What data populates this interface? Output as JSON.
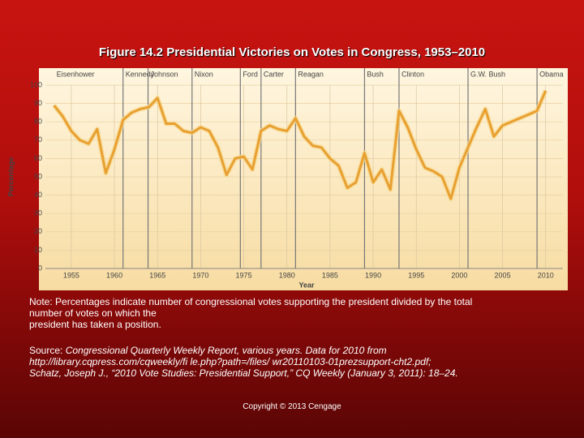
{
  "chart_data": {
    "type": "line",
    "title": "Figure 14.2 Presidential Victories on Votes in Congress, 1953–2010",
    "x_label": "Year",
    "y_label": "Percentage",
    "x": [
      1953,
      1954,
      1955,
      1956,
      1957,
      1958,
      1959,
      1960,
      1961,
      1962,
      1963,
      1964,
      1965,
      1966,
      1967,
      1968,
      1969,
      1970,
      1971,
      1972,
      1973,
      1974,
      1975,
      1976,
      1977,
      1978,
      1979,
      1980,
      1981,
      1982,
      1983,
      1984,
      1985,
      1986,
      1987,
      1988,
      1989,
      1990,
      1991,
      1992,
      1993,
      1994,
      1995,
      1996,
      1997,
      1998,
      1999,
      2000,
      2001,
      2002,
      2003,
      2004,
      2005,
      2006,
      2007,
      2008,
      2009,
      2010
    ],
    "series": [
      {
        "color": "#e8a030",
        "values": [
          89,
          83,
          75,
          70,
          68,
          76,
          52,
          65,
          81,
          85,
          87,
          88,
          93,
          79,
          79,
          75,
          74,
          77,
          75,
          66,
          51,
          60,
          61,
          54,
          75,
          78,
          76,
          75,
          82,
          72,
          67,
          66,
          60,
          56,
          44,
          47,
          63,
          47,
          54,
          43,
          86,
          77,
          65,
          55,
          53,
          50,
          38,
          55,
          66,
          77,
          87,
          72,
          78,
          80,
          82,
          84,
          86,
          97
        ]
      }
    ],
    "xlim": [
      1952,
      2012
    ],
    "ylim": [
      0,
      100
    ],
    "xticks": [
      1955,
      1960,
      1965,
      1970,
      1975,
      1980,
      1985,
      1990,
      1995,
      2000,
      2005,
      2010
    ],
    "yticks": [
      0,
      10,
      20,
      30,
      40,
      50,
      60,
      70,
      80,
      90,
      100
    ],
    "grid": true,
    "presidents": [
      {
        "label": "Eisenhower",
        "x": 1953
      },
      {
        "label": "Kennedy",
        "x": 1961
      },
      {
        "label": "Johnson",
        "x": 1963.9
      },
      {
        "label": "Nixon",
        "x": 1969
      },
      {
        "label": "Ford",
        "x": 1974.6
      },
      {
        "label": "Carter",
        "x": 1977
      },
      {
        "label": "Reagan",
        "x": 1981
      },
      {
        "label": "Bush",
        "x": 1989
      },
      {
        "label": "Clinton",
        "x": 1993
      },
      {
        "label": "G.W. Bush",
        "x": 2001
      },
      {
        "label": "Obama",
        "x": 2009
      }
    ]
  },
  "note": [
    "Note: Percentages indicate number of congressional votes supporting the president divided by the total",
    "number of votes on which the",
    "president has taken a position."
  ],
  "source": {
    "label": "Source:",
    "lines": [
      " Congressional Quarterly Weekly Report, various years. Data for 2010 from",
      "http://library.cqpress.com/cqweekly/fi le.php?path=/files/ wr20110103-01prezsupport-cht2.pdf;",
      "Schatz, Joseph J., “2010 Vote Studies: Presidential Support,” CQ Weekly (January 3, 2011): 18–24."
    ]
  },
  "copyright": "Copyright © 2013 Cengage"
}
